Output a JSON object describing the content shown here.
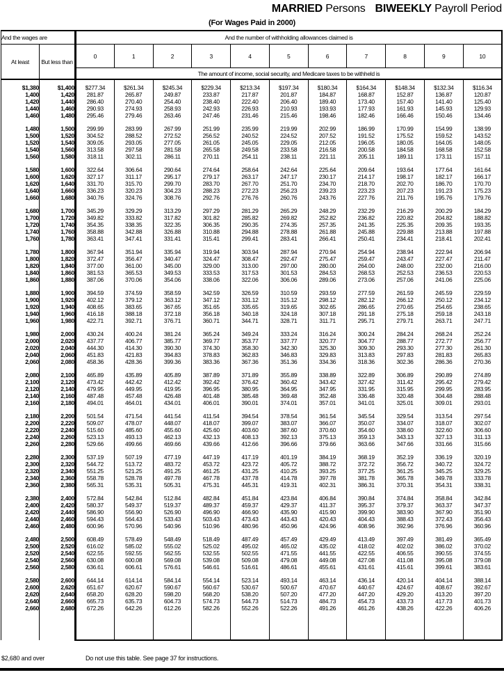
{
  "title": {
    "married": "MARRIED",
    "persons": " Persons",
    "biweekly": "BIWEEKLY",
    "payroll": " Payroll Period",
    "subtitle": "(For Wages Paid in 2000)"
  },
  "header": {
    "wages_label": "And the wages are",
    "allowances_label": "And the number of withholding allowances claimed is",
    "at_least": "At least",
    "but_less_than": "But less than",
    "allowance_numbers": [
      "0",
      "1",
      "2",
      "3",
      "4",
      "5",
      "6",
      "7",
      "8",
      "9",
      "10"
    ],
    "amount_label": "The amount of income, social security, and Medicare taxes to be withheld is"
  },
  "footer": {
    "over_label": "$2,680 and over",
    "note": "Do not use this table. See page 37 for instructions."
  },
  "table": {
    "groups": [
      [
        [
          "$1,380",
          "$1,400",
          "$277.34",
          "$261.34",
          "$245.34",
          "$229.34",
          "$213.34",
          "$197.34",
          "$180.34",
          "$164.34",
          "$148.34",
          "$132.34",
          "$116.34"
        ],
        [
          "1,400",
          "1,420",
          "281.87",
          "265.87",
          "249.87",
          "233.87",
          "217.87",
          "201.87",
          "184.87",
          "168.87",
          "152.87",
          "136.87",
          "120.87"
        ],
        [
          "1,420",
          "1,440",
          "286.40",
          "270.40",
          "254.40",
          "238.40",
          "222.40",
          "206.40",
          "189.40",
          "173.40",
          "157.40",
          "141.40",
          "125.40"
        ],
        [
          "1,440",
          "1,460",
          "290.93",
          "274.93",
          "258.93",
          "242.93",
          "226.93",
          "210.93",
          "193.93",
          "177.93",
          "161.93",
          "145.93",
          "129.93"
        ],
        [
          "1,460",
          "1,480",
          "295.46",
          "279.46",
          "263.46",
          "247.46",
          "231.46",
          "215.46",
          "198.46",
          "182.46",
          "166.46",
          "150.46",
          "134.46"
        ]
      ],
      [
        [
          "1,480",
          "1,500",
          "299.99",
          "283.99",
          "267.99",
          "251.99",
          "235.99",
          "219.99",
          "202.99",
          "186.99",
          "170.99",
          "154.99",
          "138.99"
        ],
        [
          "1,500",
          "1,520",
          "304.52",
          "288.52",
          "272.52",
          "256.52",
          "240.52",
          "224.52",
          "207.52",
          "191.52",
          "175.52",
          "159.52",
          "143.52"
        ],
        [
          "1,520",
          "1,540",
          "309.05",
          "293.05",
          "277.05",
          "261.05",
          "245.05",
          "229.05",
          "212.05",
          "196.05",
          "180.05",
          "164.05",
          "148.05"
        ],
        [
          "1,540",
          "1,560",
          "313.58",
          "297.58",
          "281.58",
          "265.58",
          "249.58",
          "233.58",
          "216.58",
          "200.58",
          "184.58",
          "168.58",
          "152.58"
        ],
        [
          "1,560",
          "1,580",
          "318.11",
          "302.11",
          "286.11",
          "270.11",
          "254.11",
          "238.11",
          "221.11",
          "205.11",
          "189.11",
          "173.11",
          "157.11"
        ]
      ],
      [
        [
          "1,580",
          "1,600",
          "322.64",
          "306.64",
          "290.64",
          "274.64",
          "258.64",
          "242.64",
          "225.64",
          "209.64",
          "193.64",
          "177.64",
          "161.64"
        ],
        [
          "1,600",
          "1,620",
          "327.17",
          "311.17",
          "295.17",
          "279.17",
          "263.17",
          "247.17",
          "230.17",
          "214.17",
          "198.17",
          "182.17",
          "166.17"
        ],
        [
          "1,620",
          "1,640",
          "331.70",
          "315.70",
          "299.70",
          "283.70",
          "267.70",
          "251.70",
          "234.70",
          "218.70",
          "202.70",
          "186.70",
          "170.70"
        ],
        [
          "1,640",
          "1,660",
          "336.23",
          "320.23",
          "304.23",
          "288.23",
          "272.23",
          "256.23",
          "239.23",
          "223.23",
          "207.23",
          "191.23",
          "175.23"
        ],
        [
          "1,660",
          "1,680",
          "340.76",
          "324.76",
          "308.76",
          "292.76",
          "276.76",
          "260.76",
          "243.76",
          "227.76",
          "211.76",
          "195.76",
          "179.76"
        ]
      ],
      [
        [
          "1,680",
          "1,700",
          "345.29",
          "329.29",
          "313.29",
          "297.29",
          "281.29",
          "265.29",
          "248.29",
          "232.29",
          "216.29",
          "200.29",
          "184.29"
        ],
        [
          "1,700",
          "1,720",
          "349.82",
          "333.82",
          "317.82",
          "301.82",
          "285.82",
          "269.82",
          "252.82",
          "236.82",
          "220.82",
          "204.82",
          "188.82"
        ],
        [
          "1,720",
          "1,740",
          "354.35",
          "338.35",
          "322.35",
          "306.35",
          "290.35",
          "274.35",
          "257.35",
          "241.35",
          "225.35",
          "209.35",
          "193.35"
        ],
        [
          "1,740",
          "1,760",
          "358.88",
          "342.88",
          "326.88",
          "310.88",
          "294.88",
          "278.88",
          "261.88",
          "245.88",
          "229.88",
          "213.88",
          "197.88"
        ],
        [
          "1,760",
          "1,780",
          "363.41",
          "347.41",
          "331.41",
          "315.41",
          "299.41",
          "283.41",
          "266.41",
          "250.41",
          "234.41",
          "218.41",
          "202.41"
        ]
      ],
      [
        [
          "1,780",
          "1,800",
          "367.94",
          "351.94",
          "335.94",
          "319.94",
          "303.94",
          "287.94",
          "270.94",
          "254.94",
          "238.94",
          "222.94",
          "206.94"
        ],
        [
          "1,800",
          "1,820",
          "372.47",
          "356.47",
          "340.47",
          "324.47",
          "308.47",
          "292.47",
          "275.47",
          "259.47",
          "243.47",
          "227.47",
          "211.47"
        ],
        [
          "1,820",
          "1,840",
          "377.00",
          "361.00",
          "345.00",
          "329.00",
          "313.00",
          "297.00",
          "280.00",
          "264.00",
          "248.00",
          "232.00",
          "216.00"
        ],
        [
          "1,840",
          "1,860",
          "381.53",
          "365.53",
          "349.53",
          "333.53",
          "317.53",
          "301.53",
          "284.53",
          "268.53",
          "252.53",
          "236.53",
          "220.53"
        ],
        [
          "1,860",
          "1,880",
          "387.06",
          "370.06",
          "354.06",
          "338.06",
          "322.06",
          "306.06",
          "289.06",
          "273.06",
          "257.06",
          "241.06",
          "225.06"
        ]
      ],
      [
        [
          "1,880",
          "1,900",
          "394.59",
          "374.59",
          "358.59",
          "342.59",
          "326.59",
          "310.59",
          "293.59",
          "277.59",
          "261.59",
          "245.59",
          "229.59"
        ],
        [
          "1,900",
          "1,920",
          "402.12",
          "379.12",
          "363.12",
          "347.12",
          "331.12",
          "315.12",
          "298.12",
          "282.12",
          "266.12",
          "250.12",
          "234.12"
        ],
        [
          "1,920",
          "1,940",
          "408.65",
          "383.65",
          "367.65",
          "351.65",
          "335.65",
          "319.65",
          "302.65",
          "286.65",
          "270.65",
          "254.65",
          "238.65"
        ],
        [
          "1,940",
          "1,960",
          "416.18",
          "388.18",
          "372.18",
          "356.18",
          "340.18",
          "324.18",
          "307.18",
          "291.18",
          "275.18",
          "259.18",
          "243.18"
        ],
        [
          "1,960",
          "1,980",
          "422.71",
          "392.71",
          "376.71",
          "360.71",
          "344.71",
          "328.71",
          "311.71",
          "295.71",
          "279.71",
          "263.71",
          "247.71"
        ]
      ],
      [
        [
          "1,980",
          "2,000",
          "430.24",
          "400.24",
          "381.24",
          "365.24",
          "349.24",
          "333.24",
          "316.24",
          "300.24",
          "284.24",
          "268.24",
          "252.24"
        ],
        [
          "2,000",
          "2,020",
          "437.77",
          "406.77",
          "385.77",
          "369.77",
          "353.77",
          "337.77",
          "320.77",
          "304.77",
          "288.77",
          "272.77",
          "256.77"
        ],
        [
          "2,020",
          "2,040",
          "444.30",
          "414.30",
          "390.30",
          "374.30",
          "358.30",
          "342.30",
          "325.30",
          "309.30",
          "293.30",
          "277.30",
          "261.30"
        ],
        [
          "2,040",
          "2,060",
          "451.83",
          "421.83",
          "394.83",
          "378.83",
          "362.83",
          "346.83",
          "329.83",
          "313.83",
          "297.83",
          "281.83",
          "265.83"
        ],
        [
          "2,060",
          "2,080",
          "458.36",
          "428.36",
          "399.36",
          "383.36",
          "367.36",
          "351.36",
          "334.36",
          "318.36",
          "302.36",
          "286.36",
          "270.36"
        ]
      ],
      [
        [
          "2,080",
          "2,100",
          "465.89",
          "435.89",
          "405.89",
          "387.89",
          "371.89",
          "355.89",
          "338.89",
          "322.89",
          "306.89",
          "290.89",
          "274.89"
        ],
        [
          "2,100",
          "2,120",
          "473.42",
          "442.42",
          "412.42",
          "392.42",
          "376.42",
          "360.42",
          "343.42",
          "327.42",
          "311.42",
          "295.42",
          "279.42"
        ],
        [
          "2,120",
          "2,140",
          "479.95",
          "449.95",
          "419.95",
          "396.95",
          "380.95",
          "364.95",
          "347.95",
          "331.95",
          "315.95",
          "299.95",
          "283.95"
        ],
        [
          "2,140",
          "2,160",
          "487.48",
          "457.48",
          "426.48",
          "401.48",
          "385.48",
          "369.48",
          "352.48",
          "336.48",
          "320.48",
          "304.48",
          "288.48"
        ],
        [
          "2,160",
          "2,180",
          "494.01",
          "464.01",
          "434.01",
          "406.01",
          "390.01",
          "374.01",
          "357.01",
          "341.01",
          "325.01",
          "309.01",
          "293.01"
        ]
      ],
      [
        [
          "2,180",
          "2,200",
          "501.54",
          "471.54",
          "441.54",
          "411.54",
          "394.54",
          "378.54",
          "361.54",
          "345.54",
          "329.54",
          "313.54",
          "297.54"
        ],
        [
          "2,200",
          "2,220",
          "509.07",
          "478.07",
          "448.07",
          "418.07",
          "399.07",
          "383.07",
          "366.07",
          "350.07",
          "334.07",
          "318.07",
          "302.07"
        ],
        [
          "2,220",
          "2,240",
          "515.60",
          "485.60",
          "455.60",
          "425.60",
          "403.60",
          "387.60",
          "370.60",
          "354.60",
          "338.60",
          "322.60",
          "306.60"
        ],
        [
          "2,240",
          "2,260",
          "523.13",
          "493.13",
          "462.13",
          "432.13",
          "408.13",
          "392.13",
          "375.13",
          "359.13",
          "343.13",
          "327.13",
          "311.13"
        ],
        [
          "2,260",
          "2,280",
          "529.66",
          "499.66",
          "469.66",
          "439.66",
          "412.66",
          "396.66",
          "379.66",
          "363.66",
          "347.66",
          "331.66",
          "315.66"
        ]
      ],
      [
        [
          "2,280",
          "2,300",
          "537.19",
          "507.19",
          "477.19",
          "447.19",
          "417.19",
          "401.19",
          "384.19",
          "368.19",
          "352.19",
          "336.19",
          "320.19"
        ],
        [
          "2,300",
          "2,320",
          "544.72",
          "513.72",
          "483.72",
          "453.72",
          "423.72",
          "405.72",
          "388.72",
          "372.72",
          "356.72",
          "340.72",
          "324.72"
        ],
        [
          "2,320",
          "2,340",
          "551.25",
          "521.25",
          "491.25",
          "461.25",
          "431.25",
          "410.25",
          "393.25",
          "377.25",
          "361.25",
          "345.25",
          "329.25"
        ],
        [
          "2,340",
          "2,360",
          "558.78",
          "528.78",
          "497.78",
          "467.78",
          "437.78",
          "414.78",
          "397.78",
          "381.78",
          "365.78",
          "349.78",
          "333.78"
        ],
        [
          "2,360",
          "2,380",
          "565.31",
          "535.31",
          "505.31",
          "475.31",
          "445.31",
          "419.31",
          "402.31",
          "386.31",
          "370.31",
          "354.31",
          "338.31"
        ]
      ],
      [
        [
          "2,380",
          "2,400",
          "572.84",
          "542.84",
          "512.84",
          "482.84",
          "451.84",
          "423.84",
          "406.84",
          "390.84",
          "374.84",
          "358.84",
          "342.84"
        ],
        [
          "2,400",
          "2,420",
          "580.37",
          "549.37",
          "519.37",
          "489.37",
          "459.37",
          "429.37",
          "411.37",
          "395.37",
          "379.37",
          "363.37",
          "347.37"
        ],
        [
          "2,420",
          "2,440",
          "586.90",
          "556.90",
          "526.90",
          "496.90",
          "466.90",
          "435.90",
          "415.90",
          "399.90",
          "383.90",
          "367.90",
          "351.90"
        ],
        [
          "2,440",
          "2,460",
          "594.43",
          "564.43",
          "533.43",
          "503.43",
          "473.43",
          "443.43",
          "420.43",
          "404.43",
          "388.43",
          "372.43",
          "356.43"
        ],
        [
          "2,460",
          "2,480",
          "600.96",
          "570.96",
          "540.96",
          "510.96",
          "480.96",
          "450.96",
          "424.96",
          "408.96",
          "392.96",
          "376.96",
          "360.96"
        ]
      ],
      [
        [
          "2,480",
          "2,500",
          "608.49",
          "578.49",
          "548.49",
          "518.49",
          "487.49",
          "457.49",
          "429.49",
          "413.49",
          "397.49",
          "381.49",
          "365.49"
        ],
        [
          "2,500",
          "2,520",
          "616.02",
          "585.02",
          "555.02",
          "525.02",
          "495.02",
          "465.02",
          "435.02",
          "418.02",
          "402.02",
          "386.02",
          "370.02"
        ],
        [
          "2,520",
          "2,540",
          "622.55",
          "592.55",
          "562.55",
          "532.55",
          "502.55",
          "471.55",
          "441.55",
          "422.55",
          "406.55",
          "390.55",
          "374.55"
        ],
        [
          "2,540",
          "2,560",
          "630.08",
          "600.08",
          "569.08",
          "539.08",
          "509.08",
          "479.08",
          "449.08",
          "427.08",
          "411.08",
          "395.08",
          "379.08"
        ],
        [
          "2,560",
          "2,580",
          "636.61",
          "606.61",
          "576.61",
          "546.61",
          "516.61",
          "486.61",
          "455.61",
          "431.61",
          "415.61",
          "399.61",
          "383.61"
        ]
      ],
      [
        [
          "2,580",
          "2,600",
          "644.14",
          "614.14",
          "584.14",
          "554.14",
          "523.14",
          "493.14",
          "463.14",
          "436.14",
          "420.14",
          "404.14",
          "388.14"
        ],
        [
          "2,600",
          "2,620",
          "651.67",
          "620.67",
          "590.67",
          "560.67",
          "530.67",
          "500.67",
          "470.67",
          "440.67",
          "424.67",
          "408.67",
          "392.67"
        ],
        [
          "2,620",
          "2,640",
          "658.20",
          "628.20",
          "598.20",
          "568.20",
          "538.20",
          "507.20",
          "477.20",
          "447.20",
          "429.20",
          "413.20",
          "397.20"
        ],
        [
          "2,640",
          "2,660",
          "665.73",
          "635.73",
          "604.73",
          "574.73",
          "544.73",
          "514.73",
          "484.73",
          "454.73",
          "433.73",
          "417.73",
          "401.73"
        ],
        [
          "2,660",
          "2,680",
          "672.26",
          "642.26",
          "612.26",
          "582.26",
          "552.26",
          "522.26",
          "491.26",
          "461.26",
          "438.26",
          "422.26",
          "406.26"
        ]
      ]
    ]
  }
}
